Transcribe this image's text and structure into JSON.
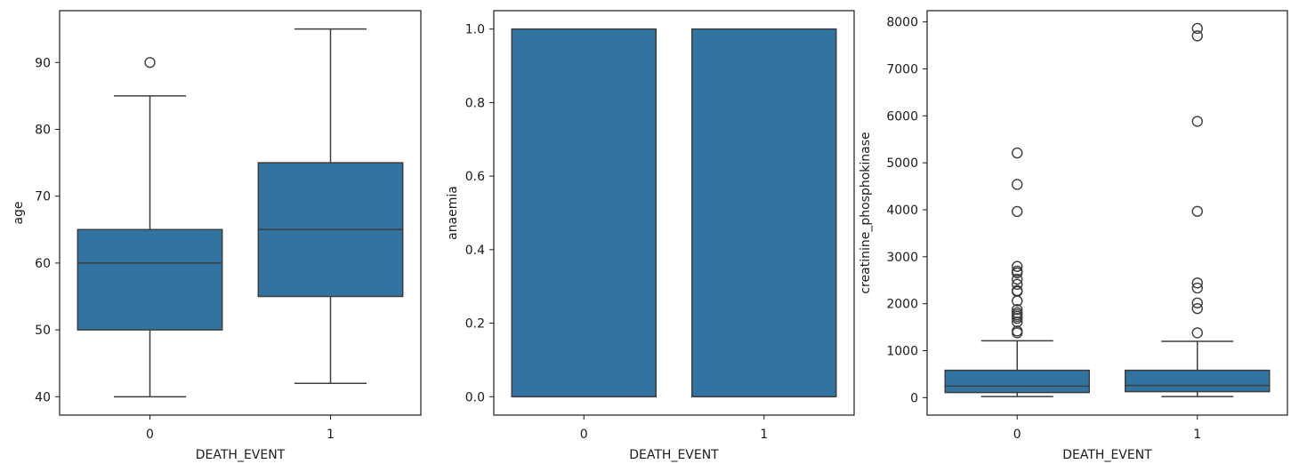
{
  "colors": {
    "box_fill": "#3274a1",
    "line": "#3d3d3d",
    "axis": "#1a1a1a"
  },
  "chart_data": [
    {
      "type": "box",
      "xlabel": "DEATH_EVENT",
      "ylabel": "age",
      "categories": [
        "0",
        "1"
      ],
      "yticks": [
        "40",
        "50",
        "60",
        "70",
        "80",
        "90"
      ],
      "ylim": [
        37.25,
        97.75
      ],
      "boxes": [
        {
          "q1": 50,
          "median": 60,
          "q3": 65,
          "whislo": 40,
          "whishi": 85,
          "fliers": [
            90
          ]
        },
        {
          "q1": 55,
          "median": 65,
          "q3": 75,
          "whislo": 42,
          "whishi": 95,
          "fliers": []
        }
      ]
    },
    {
      "type": "bar",
      "xlabel": "DEATH_EVENT",
      "ylabel": "anaemia",
      "categories": [
        "0",
        "1"
      ],
      "values": [
        1.0,
        1.0
      ],
      "yticks": [
        "0.0",
        "0.2",
        "0.4",
        "0.6",
        "0.8",
        "1.0"
      ],
      "ylim": [
        -0.05,
        1.05
      ]
    },
    {
      "type": "box",
      "xlabel": "DEATH_EVENT",
      "ylabel": "creatinine_phosphokinase",
      "categories": [
        "0",
        "1"
      ],
      "yticks": [
        "0",
        "1000",
        "2000",
        "3000",
        "4000",
        "5000",
        "6000",
        "7000",
        "8000"
      ],
      "ylim": [
        -372,
        8239
      ],
      "boxes": [
        {
          "q1": 109,
          "median": 245,
          "q3": 582,
          "whislo": 23,
          "whishi": 1211,
          "fliers": [
            1380,
            1419,
            1610,
            1688,
            1730,
            1767,
            1808,
            1876,
            2060,
            2261,
            2281,
            2413,
            2522,
            2656,
            2695,
            2794,
            3964,
            4540,
            5209
          ]
        },
        {
          "q1": 128,
          "median": 259,
          "q3": 582,
          "whislo": 23,
          "whishi": 1199,
          "fliers": [
            1380,
            1896,
            2017,
            2334,
            2442,
            3966,
            5882,
            7702,
            7861
          ]
        }
      ]
    }
  ]
}
